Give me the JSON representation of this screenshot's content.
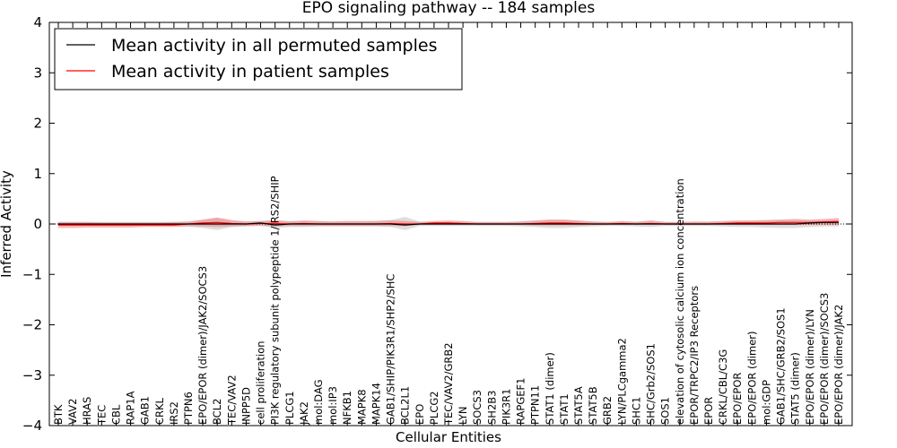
{
  "chart_data": {
    "type": "line",
    "title": "EPO signaling pathway -- 184 samples",
    "xlabel": "Cellular Entities",
    "ylabel": "Inferred Activity",
    "ylim": [
      -4,
      4
    ],
    "yticks": [
      -4,
      -3,
      -2,
      -1,
      0,
      1,
      2,
      3,
      4
    ],
    "ytick_labels": [
      "−4",
      "−3",
      "−2",
      "−1",
      "0",
      "1",
      "2",
      "3",
      "4"
    ],
    "grid": false,
    "legend_position": "top-left",
    "categories": [
      "BTK",
      "VAV2",
      "HRAS",
      "TEC",
      "CBL",
      "RAP1A",
      "GAB1",
      "CRKL",
      "IRS2",
      "PTPN6",
      "EPO/EPOR (dimer)/JAK2/SOCS3",
      "BCL2",
      "TEC/VAV2",
      "INPP5D",
      "cell proliferation",
      "PI3K regulatory subunit polypeptide 1/IRS2/SHIP",
      "PLCG1",
      "JAK2",
      "mol:DAG",
      "mol:IP3",
      "NFKB1",
      "MAPK8",
      "MAPK14",
      "GAB1/SHIP/PIK3R1/SHP2/SHC",
      "BCL2L1",
      "EPO",
      "PLCG2",
      "TEC/VAV2/GRB2",
      "LYN",
      "SOCS3",
      "SH2B3",
      "PIK3R1",
      "RAPGEF1",
      "PTPN11",
      "STAT1 (dimer)",
      "STAT1",
      "STAT5A",
      "STAT5B",
      "GRB2",
      "LYN/PLCgamma2",
      "SHC1",
      "SHC/Grb2/SOS1",
      "SOS1",
      "elevation of cytosolic calcium ion concentration",
      "EPOR/TRPC2/IP3 Receptors",
      "EPOR",
      "CRKL/CBL/C3G",
      "EPO/EPOR",
      "EPO/EPOR (dimer)",
      "mol:GDP",
      "GAB1/SHC/GRB2/SOS1",
      "STAT5 (dimer)",
      "EPO/EPOR (dimer)/LYN",
      "EPO/EPOR (dimer)/SOCS3",
      "EPO/EPOR (dimer)/JAK2"
    ],
    "series": [
      {
        "name": "Mean activity in all permuted samples",
        "color": "#000000",
        "band_color": "#c8c8c8",
        "values": [
          0,
          0,
          0,
          0,
          0,
          0,
          0,
          0,
          0,
          0,
          0,
          0,
          0,
          0,
          0.02,
          -0.02,
          0,
          0,
          0,
          0,
          0,
          0,
          0,
          0,
          -0.02,
          0,
          0,
          0,
          0,
          0,
          0,
          0,
          0,
          0,
          0,
          0,
          0,
          0,
          0,
          0,
          0,
          0,
          0,
          0,
          0,
          0,
          0,
          0,
          0,
          0,
          0,
          0,
          0.02,
          0.03,
          0.03
        ],
        "lower": [
          -0.04,
          -0.04,
          -0.04,
          -0.04,
          -0.04,
          -0.04,
          -0.04,
          -0.04,
          -0.04,
          -0.05,
          -0.08,
          -0.12,
          -0.06,
          -0.05,
          -0.04,
          -0.08,
          -0.06,
          -0.06,
          -0.05,
          -0.05,
          -0.05,
          -0.05,
          -0.05,
          -0.06,
          -0.12,
          -0.04,
          -0.04,
          -0.04,
          -0.04,
          -0.04,
          -0.04,
          -0.04,
          -0.05,
          -0.06,
          -0.08,
          -0.08,
          -0.06,
          -0.05,
          -0.04,
          -0.04,
          -0.05,
          -0.06,
          -0.04,
          -0.04,
          -0.04,
          -0.04,
          -0.05,
          -0.06,
          -0.06,
          -0.07,
          -0.08,
          -0.08,
          -0.06,
          -0.05,
          -0.05
        ],
        "upper": [
          0.04,
          0.04,
          0.04,
          0.04,
          0.04,
          0.04,
          0.04,
          0.04,
          0.04,
          0.05,
          0.08,
          0.12,
          0.06,
          0.05,
          0.06,
          0.08,
          0.06,
          0.06,
          0.05,
          0.05,
          0.05,
          0.05,
          0.06,
          0.08,
          0.14,
          0.05,
          0.04,
          0.04,
          0.04,
          0.04,
          0.04,
          0.04,
          0.05,
          0.06,
          0.08,
          0.08,
          0.06,
          0.05,
          0.04,
          0.04,
          0.05,
          0.06,
          0.04,
          0.04,
          0.04,
          0.04,
          0.05,
          0.06,
          0.06,
          0.07,
          0.08,
          0.08,
          0.07,
          0.08,
          0.08
        ]
      },
      {
        "name": "Mean activity in patient samples",
        "color": "#ff0000",
        "band_color": "#f08080",
        "values": [
          -0.02,
          -0.02,
          -0.02,
          -0.02,
          -0.02,
          -0.02,
          -0.02,
          -0.02,
          -0.02,
          0,
          0.02,
          0.03,
          0.01,
          0,
          0.01,
          0.01,
          0,
          0.01,
          0,
          0,
          0,
          0,
          0,
          0.01,
          0,
          0,
          0.02,
          0.02,
          0.01,
          0,
          0,
          0,
          0,
          0.01,
          0.02,
          0.02,
          0.01,
          0,
          0,
          0.01,
          0,
          0.01,
          0,
          0,
          0,
          0,
          0.01,
          0.02,
          0.02,
          0.02,
          0.03,
          0.03,
          0.03,
          0.04,
          0.05
        ],
        "lower": [
          -0.08,
          -0.08,
          -0.07,
          -0.07,
          -0.07,
          -0.07,
          -0.06,
          -0.06,
          -0.06,
          -0.05,
          -0.05,
          -0.06,
          -0.05,
          -0.04,
          -0.03,
          -0.05,
          -0.04,
          -0.04,
          -0.04,
          -0.04,
          -0.04,
          -0.04,
          -0.04,
          -0.04,
          -0.04,
          -0.02,
          -0.02,
          -0.02,
          -0.02,
          -0.02,
          -0.02,
          -0.02,
          -0.02,
          -0.03,
          -0.03,
          -0.03,
          -0.03,
          -0.02,
          -0.02,
          -0.02,
          -0.02,
          -0.02,
          -0.02,
          -0.02,
          -0.02,
          -0.02,
          -0.02,
          -0.02,
          -0.02,
          -0.02,
          -0.02,
          -0.02,
          -0.02,
          -0.02,
          -0.02
        ],
        "upper": [
          0.04,
          0.04,
          0.04,
          0.03,
          0.03,
          0.03,
          0.03,
          0.03,
          0.04,
          0.05,
          0.09,
          0.13,
          0.08,
          0.05,
          0.06,
          0.07,
          0.05,
          0.07,
          0.06,
          0.05,
          0.06,
          0.06,
          0.06,
          0.07,
          0.06,
          0.04,
          0.06,
          0.07,
          0.06,
          0.04,
          0.04,
          0.04,
          0.05,
          0.07,
          0.09,
          0.09,
          0.07,
          0.05,
          0.04,
          0.06,
          0.04,
          0.07,
          0.04,
          0.04,
          0.05,
          0.05,
          0.06,
          0.07,
          0.07,
          0.08,
          0.09,
          0.1,
          0.09,
          0.1,
          0.12
        ]
      }
    ]
  }
}
